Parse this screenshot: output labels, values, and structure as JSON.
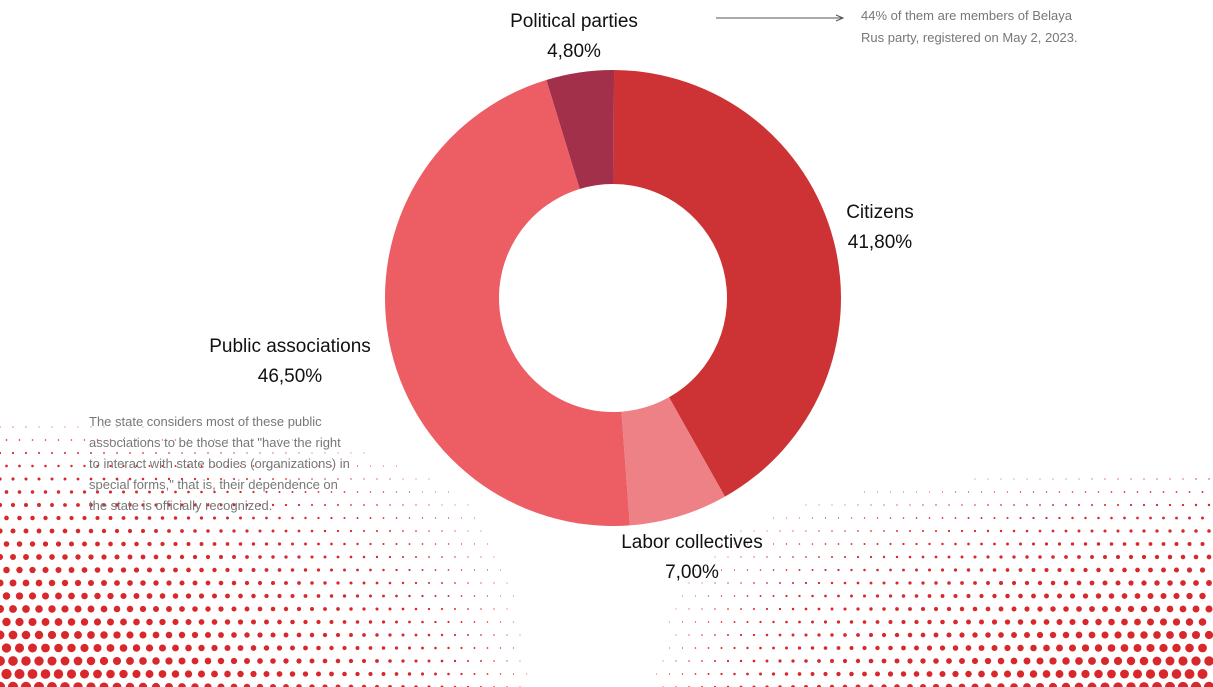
{
  "chart_data": {
    "type": "pie",
    "variant": "donut",
    "title": "",
    "categories": [
      "Political parties",
      "Citizens",
      "Labor collectives",
      "Public associations"
    ],
    "values": [
      4.8,
      41.8,
      7.0,
      46.5
    ],
    "value_labels": [
      "4,80%",
      "41,80%",
      "7,00%",
      "46,50%"
    ],
    "unit": "%",
    "start_angle_deg": -17,
    "colors": [
      "#A2304A",
      "#CD3334",
      "#EE8185",
      "#EC5D64"
    ],
    "legend": "none",
    "annotations": [
      {
        "target": "Political parties",
        "lines": [
          "44% of them are members of Belaya",
          "Rus party, registered on May 2, 2023."
        ]
      },
      {
        "target": "Public associations",
        "lines": [
          "The state considers most of these public",
          "associations to be those that \"have the right",
          "to interact with state bodies (organizations) in",
          "special forms,\" that is, their dependence on",
          "the state is officially recognized."
        ]
      }
    ]
  },
  "decoration": {
    "dot_color": "#D8282C"
  }
}
